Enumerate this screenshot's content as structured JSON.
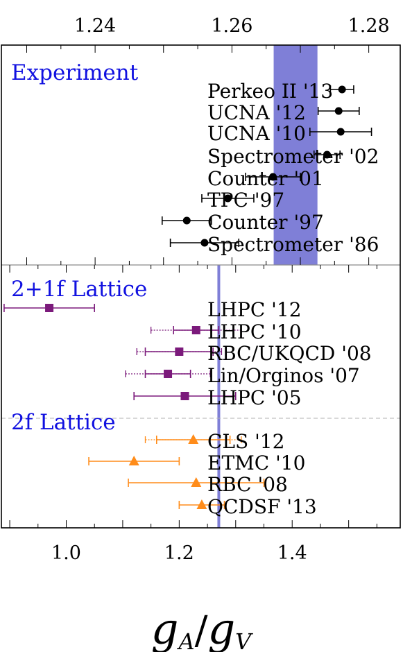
{
  "chart_data": {
    "type": "scatter",
    "title": "",
    "xlabel_main": "g",
    "xlabel_sub1": "A",
    "xlabel_sep": "/",
    "xlabel_sub2": "V",
    "top_axis": {
      "range": [
        1.2263,
        1.2846
      ],
      "ticks": [
        1.24,
        1.26,
        1.28
      ],
      "tick_labels": [
        "1.24",
        "1.26",
        "1.28"
      ]
    },
    "bottom_axis": {
      "range": [
        0.8852,
        1.5913
      ],
      "ticks": [
        1.0,
        1.2,
        1.4
      ],
      "tick_labels": [
        "1.0",
        "1.2",
        "1.4"
      ]
    },
    "bands": {
      "experiment_band": [
        1.2661,
        1.2725
      ],
      "lattice_line": 1.2701
    },
    "sections": [
      {
        "label": "Experiment",
        "axis": "top",
        "marker": "circle",
        "color": "#000000",
        "points": [
          {
            "label": "Perkeo II '13",
            "value": 1.2761,
            "err": 0.0017
          },
          {
            "label": "UCNA '12",
            "value": 1.2756,
            "err": 0.003
          },
          {
            "label": "UCNA '10",
            "value": 1.2759,
            "err": 0.0045
          },
          {
            "label": "Spectrometer '02",
            "value": 1.2739,
            "err": 0.0019
          },
          {
            "label": "Counter '01",
            "value": 1.266,
            "err": 0.004
          },
          {
            "label": "TPC '97",
            "value": 1.2594,
            "err": 0.0038
          },
          {
            "label": "Counter '97",
            "value": 1.2534,
            "err": 0.0036
          },
          {
            "label": "Spectrometer '86",
            "value": 1.256,
            "err": 0.005
          }
        ]
      },
      {
        "label": "2+1f Lattice",
        "axis": "bottom",
        "marker": "square",
        "color": "#7b1a7b",
        "points": [
          {
            "label": "LHPC '12",
            "value": 0.97,
            "err": 0.08
          },
          {
            "label": "LHPC '10",
            "value": 1.23,
            "err": 0.04,
            "err_sys": 0.08
          },
          {
            "label": "RBC/UKQCD '08",
            "value": 1.2,
            "err": 0.06,
            "err_sys": 0.075
          },
          {
            "label": "Lin/Orginos '07",
            "value": 1.18,
            "err": 0.04,
            "err_sys": 0.075
          },
          {
            "label": "LHPC '05",
            "value": 1.21,
            "err": 0.09
          }
        ]
      },
      {
        "label": "2f Lattice",
        "axis": "bottom",
        "marker": "triangle",
        "color": "#ff8c1a",
        "points": [
          {
            "label": "CLS '12",
            "value": 1.225,
            "err": 0.065,
            "err_sys": 0.085
          },
          {
            "label": "ETMC '10",
            "value": 1.12,
            "err": 0.08
          },
          {
            "label": "RBC '08",
            "value": 1.23,
            "err": 0.12
          },
          {
            "label": "QCDSF '13",
            "value": 1.24,
            "err": 0.04
          }
        ]
      }
    ]
  }
}
